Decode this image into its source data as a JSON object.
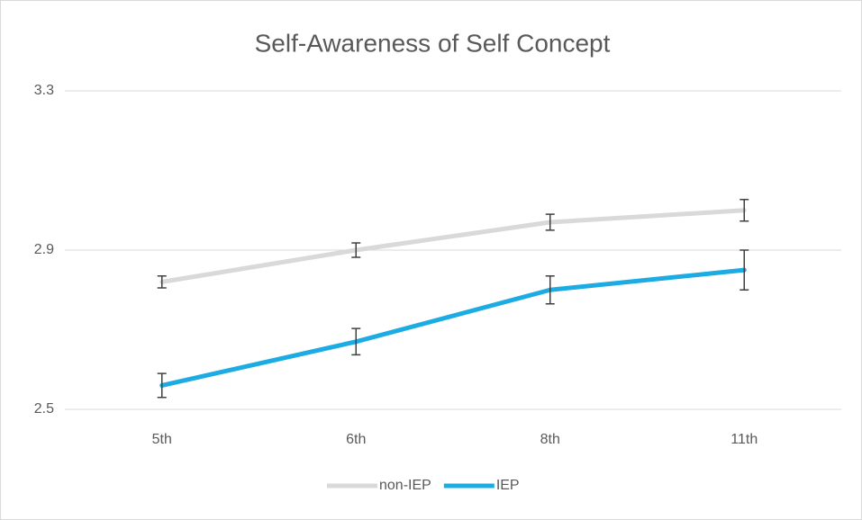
{
  "chart_data": {
    "type": "line",
    "title": "Self-Awareness of Self Concept",
    "categories": [
      "5th",
      "6th",
      "8th",
      "11th"
    ],
    "series": [
      {
        "name": "non-IEP",
        "color": "#d9d9d9",
        "values": [
          2.82,
          2.9,
          2.97,
          3.0
        ],
        "errors": [
          0.015,
          0.018,
          0.02,
          0.027
        ]
      },
      {
        "name": "IEP",
        "color": "#1cace3",
        "values": [
          2.56,
          2.67,
          2.8,
          2.85
        ],
        "errors": [
          0.03,
          0.033,
          0.035,
          0.05
        ]
      }
    ],
    "ylim": [
      2.5,
      3.3
    ],
    "yticks": [
      2.5,
      2.9,
      3.3
    ],
    "grid": true,
    "legend": "bottom",
    "error_bar_color": "#404040"
  }
}
